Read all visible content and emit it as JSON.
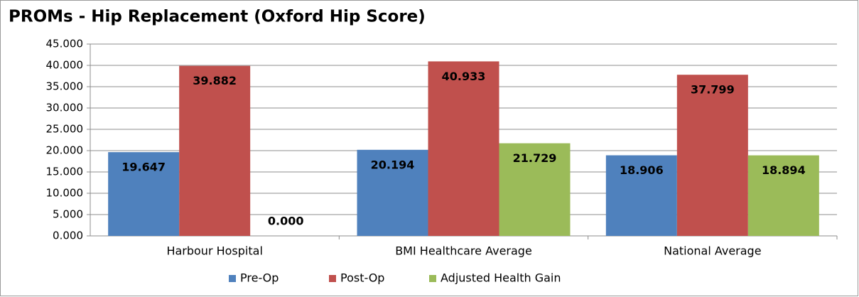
{
  "chart_data": {
    "type": "bar",
    "title": "PROMs - Hip Replacement (Oxford Hip Score)",
    "categories": [
      "Harbour Hospital",
      "BMI Healthcare Average",
      "National Average"
    ],
    "series": [
      {
        "name": "Pre-Op",
        "color": "#4f81bd",
        "values": [
          19.647,
          20.194,
          18.906
        ],
        "value_labels": [
          "19.647",
          "20.194",
          "18.906"
        ]
      },
      {
        "name": "Post-Op",
        "color": "#c0504d",
        "values": [
          39.882,
          40.933,
          37.799
        ],
        "value_labels": [
          "39.882",
          "40.933",
          "37.799"
        ]
      },
      {
        "name": "Adjusted Health Gain",
        "color": "#9bbb59",
        "values": [
          0,
          21.729,
          18.894
        ],
        "value_labels": [
          "0.000",
          "21.729",
          "18.894"
        ]
      }
    ],
    "ylim": [
      0,
      45
    ],
    "yticks": [
      {
        "value": 0,
        "label": "0.000"
      },
      {
        "value": 5,
        "label": "5.000"
      },
      {
        "value": 10,
        "label": "10.000"
      },
      {
        "value": 15,
        "label": "15.000"
      },
      {
        "value": 20,
        "label": "20.000"
      },
      {
        "value": 25,
        "label": "25.000"
      },
      {
        "value": 30,
        "label": "30.000"
      },
      {
        "value": 35,
        "label": "35.000"
      },
      {
        "value": 40,
        "label": "40.000"
      },
      {
        "value": 45,
        "label": "45.000"
      }
    ],
    "grid": true,
    "legend": "bottom"
  }
}
